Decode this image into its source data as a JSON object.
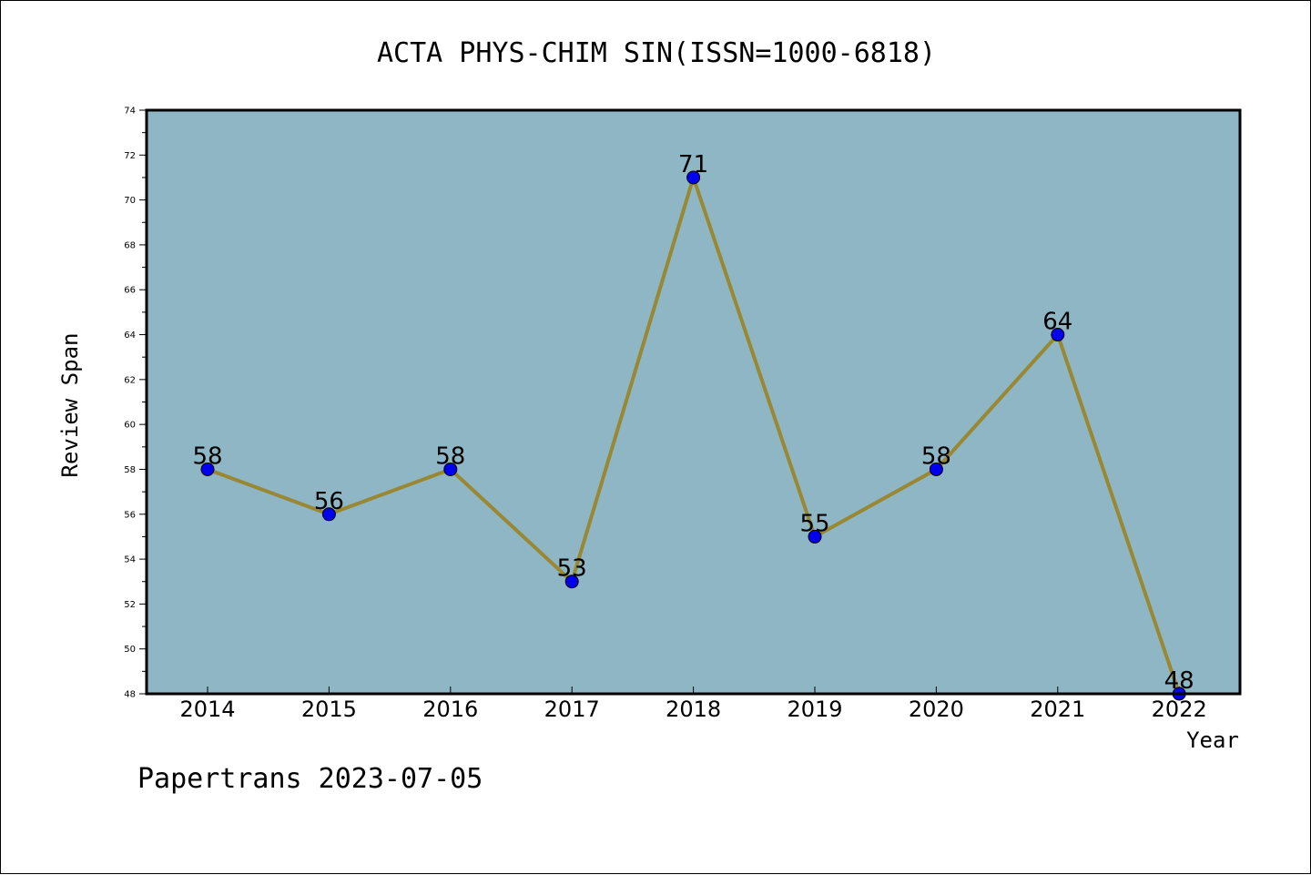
{
  "title": "ACTA PHYS-CHIM SIN(ISSN=1000-6818)",
  "footer": "Papertrans 2023-07-05",
  "colors": {
    "plot_background": "#8fb6c4",
    "line": "#998833",
    "marker_fill": "#0000ee",
    "axis": "#000000"
  },
  "chart_data": {
    "type": "line",
    "title": "ACTA PHYS-CHIM SIN(ISSN=1000-6818)",
    "xlabel": "Year",
    "ylabel": "Review Span",
    "categories": [
      "2014",
      "2015",
      "2016",
      "2017",
      "2018",
      "2019",
      "2020",
      "2021",
      "2022"
    ],
    "values": [
      58,
      56,
      58,
      53,
      71,
      55,
      58,
      64,
      48
    ],
    "ylim": [
      48,
      74
    ],
    "yticks": [
      48,
      50,
      52,
      54,
      56,
      58,
      60,
      62,
      64,
      66,
      68,
      70,
      72,
      74
    ],
    "data_labels": [
      "58",
      "56",
      "58",
      "53",
      "71",
      "55",
      "58",
      "64",
      "48"
    ],
    "grid": false,
    "legend": false
  }
}
